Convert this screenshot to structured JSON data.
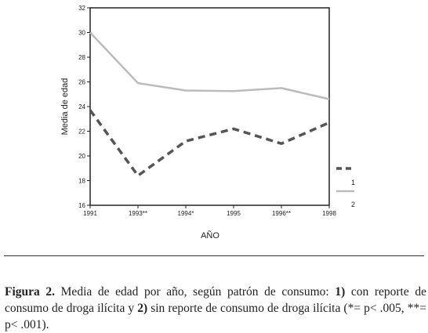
{
  "chart_data": {
    "type": "line",
    "x": [
      "1991",
      "1993**",
      "1994*",
      "1995",
      "1996**",
      "1998"
    ],
    "series": [
      {
        "name": "1",
        "values": [
          23.7,
          18.4,
          21.2,
          22.2,
          21.0,
          22.7
        ],
        "color": "#555555",
        "style": "dashed"
      },
      {
        "name": "2",
        "values": [
          30.0,
          25.9,
          25.3,
          25.25,
          25.5,
          24.6
        ],
        "color": "#bbbbbb",
        "style": "solid"
      }
    ],
    "yticks": [
      16,
      18,
      20,
      22,
      24,
      26,
      28,
      30,
      32
    ],
    "ylim": [
      16,
      32
    ],
    "xlabel": "AÑO",
    "ylabel": "Media de edad",
    "legend_position": "right",
    "grid": false
  },
  "caption": {
    "label": "Figura 2.",
    "text_1": " Media de edad por año, según patrón de consumo: ",
    "key_1": "1)",
    "text_2": " con reporte de consumo de droga ilícita y ",
    "key_2": "2)",
    "text_3": " sin reporte de consumo de droga ilícita (*= p< .005, **= p< .001)."
  }
}
